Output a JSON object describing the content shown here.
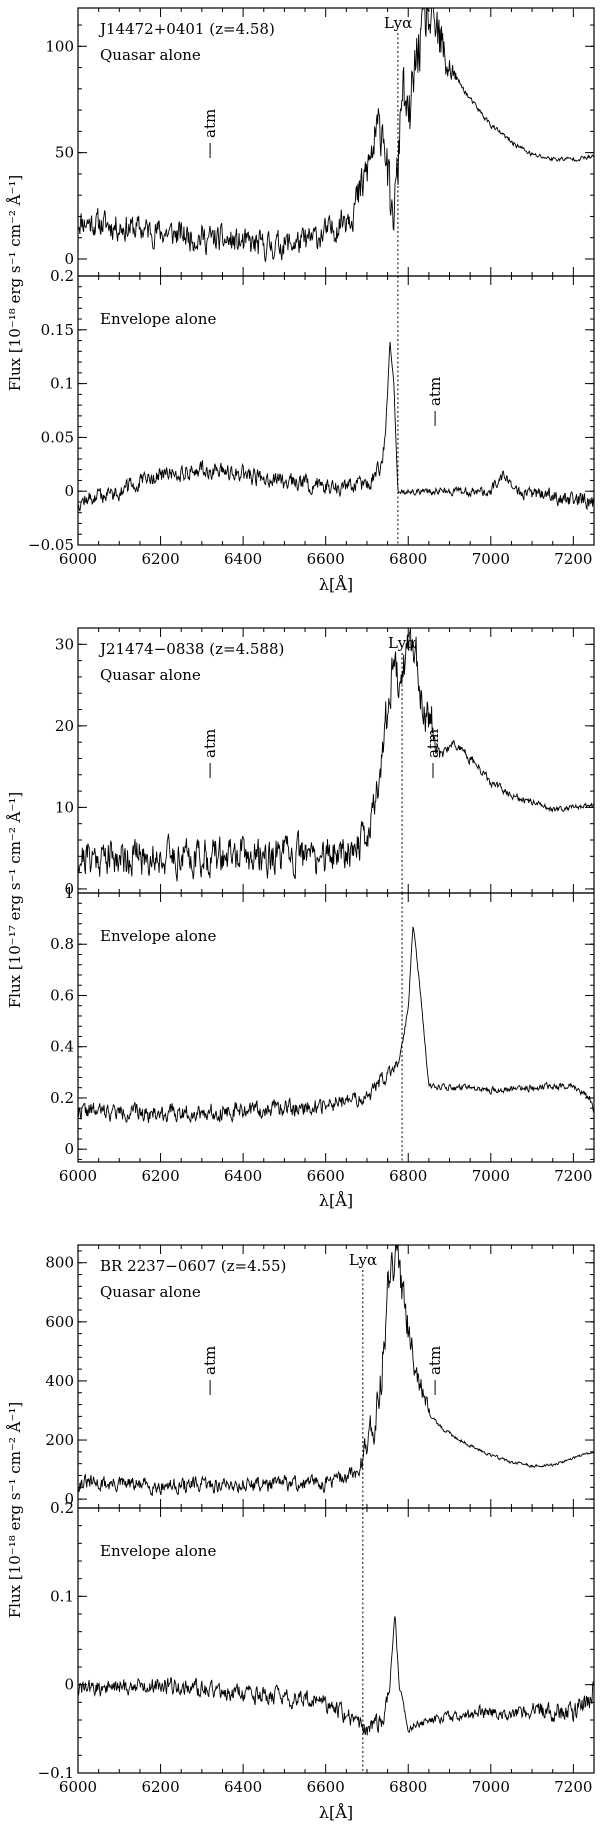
{
  "figure": {
    "xlabel": "λ[Å]",
    "colors": {
      "ink": "#000000",
      "background": "#ffffff"
    }
  },
  "chart_data": [
    {
      "type": "line",
      "xlim": [
        6000,
        7250
      ],
      "x_ticks": [
        6000,
        6200,
        6400,
        6600,
        6800,
        7000,
        7200
      ],
      "x_tick_labels": [
        "6000",
        "6200",
        "6400",
        "6600",
        "6800",
        "7000",
        "7200"
      ],
      "xlabel": "λ[Å]",
      "ylabel": "Flux [10⁻¹⁸ erg s⁻¹ cm⁻² Å⁻¹]",
      "lya_wavelength": 6775,
      "lya_label": "Lyα",
      "panels": [
        {
          "name": "quasar",
          "object_label": "J14472+0401 (z=4.58)",
          "panel_label": "Quasar alone",
          "ylim": [
            -8,
            118
          ],
          "y_ticks": [
            0,
            50,
            100
          ],
          "y_tick_labels": [
            "0",
            "50",
            "100"
          ],
          "atm": [
            {
              "x": 6320,
              "label": "atm"
            }
          ],
          "spectrum": {
            "base": [
              [
                6000,
                18
              ],
              [
                6150,
                14
              ],
              [
                6300,
                10
              ],
              [
                6450,
                6
              ],
              [
                6550,
                8
              ],
              [
                6620,
                14
              ],
              [
                6680,
                28
              ],
              [
                6720,
                55
              ],
              [
                6740,
                65
              ],
              [
                6760,
                15
              ],
              [
                6775,
                40
              ],
              [
                6785,
                85
              ],
              [
                6800,
                60
              ],
              [
                6820,
                95
              ],
              [
                6840,
                112
              ],
              [
                6860,
                112
              ],
              [
                6875,
                100
              ],
              [
                6900,
                90
              ],
              [
                6950,
                75
              ],
              [
                7000,
                63
              ],
              [
                7050,
                55
              ],
              [
                7100,
                49
              ],
              [
                7150,
                47
              ],
              [
                7200,
                47
              ],
              [
                7250,
                48
              ]
            ],
            "noise": [
              [
                6000,
                10
              ],
              [
                6620,
                10
              ],
              [
                6720,
                20
              ],
              [
                6760,
                20
              ],
              [
                6880,
                25
              ],
              [
                6920,
                2
              ],
              [
                7250,
                1.5
              ]
            ],
            "seed": 11
          }
        },
        {
          "name": "envelope",
          "panel_label": "Envelope alone",
          "ylim": [
            -0.05,
            0.2
          ],
          "y_ticks": [
            -0.05,
            0,
            0.05,
            0.1,
            0.15,
            0.2
          ],
          "y_tick_labels": [
            "−0.05",
            "0",
            "0.05",
            "0.1",
            "0.15",
            "0.2"
          ],
          "atm": [
            {
              "x": 6865,
              "label": "atm"
            }
          ],
          "spectrum": {
            "base": [
              [
                6000,
                -0.01
              ],
              [
                6100,
                0.0
              ],
              [
                6200,
                0.015
              ],
              [
                6300,
                0.02
              ],
              [
                6400,
                0.015
              ],
              [
                6500,
                0.01
              ],
              [
                6600,
                0.005
              ],
              [
                6700,
                0.005
              ],
              [
                6730,
                0.02
              ],
              [
                6745,
                0.05
              ],
              [
                6755,
                0.14
              ],
              [
                6765,
                0.1
              ],
              [
                6775,
                0.0
              ],
              [
                6800,
                0.0
              ],
              [
                6900,
                0.0
              ],
              [
                7000,
                0.0
              ],
              [
                7030,
                0.015
              ],
              [
                7060,
                0.0
              ],
              [
                7250,
                -0.01
              ]
            ],
            "noise": [
              [
                6000,
                0.012
              ],
              [
                6740,
                0.012
              ],
              [
                6770,
                0.004
              ],
              [
                7250,
                0.012
              ]
            ],
            "seed": 12
          }
        }
      ]
    },
    {
      "type": "line",
      "xlim": [
        6000,
        7250
      ],
      "x_ticks": [
        6000,
        6200,
        6400,
        6600,
        6800,
        7000,
        7200
      ],
      "x_tick_labels": [
        "6000",
        "6200",
        "6400",
        "6600",
        "6800",
        "7000",
        "7200"
      ],
      "xlabel": "λ[Å]",
      "ylabel": "Flux [10⁻¹⁷ erg s⁻¹ cm⁻² Å⁻¹]",
      "lya_wavelength": 6785,
      "lya_label": "Lyα",
      "panels": [
        {
          "name": "quasar",
          "object_label": "J21474−0838 (z=4.588)",
          "panel_label": "Quasar alone",
          "ylim": [
            -0.5,
            32
          ],
          "y_ticks": [
            0,
            10,
            20,
            30
          ],
          "y_tick_labels": [
            "0",
            "10",
            "20",
            "30"
          ],
          "atm": [
            {
              "x": 6320,
              "label": "atm"
            },
            {
              "x": 6860,
              "label": "atm"
            }
          ],
          "spectrum": {
            "base": [
              [
                6000,
                4
              ],
              [
                6300,
                4
              ],
              [
                6600,
                4
              ],
              [
                6700,
                6
              ],
              [
                6730,
                14
              ],
              [
                6760,
                26
              ],
              [
                6790,
                28
              ],
              [
                6810,
                31
              ],
              [
                6830,
                24
              ],
              [
                6860,
                20
              ],
              [
                6880,
                16
              ],
              [
                6910,
                18
              ],
              [
                6950,
                16
              ],
              [
                7000,
                13
              ],
              [
                7050,
                11.5
              ],
              [
                7100,
                10.5
              ],
              [
                7150,
                9.8
              ],
              [
                7200,
                10
              ],
              [
                7250,
                10.3
              ]
            ],
            "noise": [
              [
                6000,
                3.5
              ],
              [
                6720,
                3.5
              ],
              [
                6760,
                5
              ],
              [
                6850,
                5
              ],
              [
                6880,
                1
              ],
              [
                7250,
                0.4
              ]
            ],
            "seed": 21
          }
        },
        {
          "name": "envelope",
          "panel_label": "Envelope alone",
          "ylim": [
            -0.05,
            1.0
          ],
          "y_ticks": [
            0,
            0.2,
            0.4,
            0.6,
            0.8,
            1
          ],
          "y_tick_labels": [
            "0",
            "0.2",
            "0.4",
            "0.6",
            "0.8",
            "1"
          ],
          "atm": [],
          "spectrum": {
            "base": [
              [
                6000,
                0.15
              ],
              [
                6200,
                0.14
              ],
              [
                6400,
                0.15
              ],
              [
                6600,
                0.17
              ],
              [
                6700,
                0.2
              ],
              [
                6740,
                0.28
              ],
              [
                6780,
                0.35
              ],
              [
                6800,
                0.55
              ],
              [
                6812,
                0.88
              ],
              [
                6830,
                0.6
              ],
              [
                6850,
                0.25
              ],
              [
                6900,
                0.24
              ],
              [
                7000,
                0.23
              ],
              [
                7100,
                0.24
              ],
              [
                7200,
                0.25
              ],
              [
                7240,
                0.2
              ],
              [
                7250,
                0.14
              ]
            ],
            "noise": [
              [
                6000,
                0.05
              ],
              [
                6750,
                0.05
              ],
              [
                6800,
                0.015
              ],
              [
                6860,
                0.015
              ],
              [
                6880,
                0.02
              ],
              [
                7250,
                0.02
              ]
            ],
            "seed": 22
          }
        }
      ]
    },
    {
      "type": "line",
      "xlim": [
        6000,
        7250
      ],
      "x_ticks": [
        6000,
        6200,
        6400,
        6600,
        6800,
        7000,
        7200
      ],
      "x_tick_labels": [
        "6000",
        "6200",
        "6400",
        "6600",
        "6800",
        "7000",
        "7200"
      ],
      "xlabel": "λ[Å]",
      "ylabel": "Flux [10⁻¹⁸ erg s⁻¹ cm⁻² Å⁻¹]",
      "lya_wavelength": 6690,
      "lya_label": "Lyα",
      "panels": [
        {
          "name": "quasar",
          "object_label": "BR 2237−0607 (z=4.55)",
          "panel_label": "Quasar alone",
          "ylim": [
            -30,
            860
          ],
          "y_ticks": [
            0,
            200,
            400,
            600,
            800
          ],
          "y_tick_labels": [
            "0",
            "200",
            "400",
            "600",
            "800"
          ],
          "atm": [
            {
              "x": 6320,
              "label": "atm"
            },
            {
              "x": 6865,
              "label": "atm"
            }
          ],
          "spectrum": {
            "base": [
              [
                6000,
                55
              ],
              [
                6200,
                45
              ],
              [
                6400,
                50
              ],
              [
                6600,
                55
              ],
              [
                6680,
                90
              ],
              [
                6700,
                200
              ],
              [
                6730,
                320
              ],
              [
                6750,
                700
              ],
              [
                6770,
                820
              ],
              [
                6790,
                700
              ],
              [
                6810,
                520
              ],
              [
                6830,
                380
              ],
              [
                6850,
                300
              ],
              [
                6880,
                240
              ],
              [
                6950,
                180
              ],
              [
                7000,
                150
              ],
              [
                7050,
                125
              ],
              [
                7100,
                112
              ],
              [
                7150,
                115
              ],
              [
                7200,
                140
              ],
              [
                7250,
                160
              ]
            ],
            "noise": [
              [
                6000,
                40
              ],
              [
                6680,
                40
              ],
              [
                6720,
                120
              ],
              [
                6800,
                120
              ],
              [
                6860,
                10
              ],
              [
                7250,
                6
              ]
            ],
            "seed": 31
          }
        },
        {
          "name": "envelope",
          "panel_label": "Envelope alone",
          "ylim": [
            -0.1,
            0.2
          ],
          "y_ticks": [
            -0.1,
            0,
            0.1,
            0.2
          ],
          "y_tick_labels": [
            "−0.1",
            "0",
            "0.1",
            "0.2"
          ],
          "atm": [],
          "spectrum": {
            "base": [
              [
                6000,
                -0.005
              ],
              [
                6200,
                0.0
              ],
              [
                6400,
                -0.01
              ],
              [
                6600,
                -0.02
              ],
              [
                6700,
                -0.05
              ],
              [
                6740,
                -0.04
              ],
              [
                6755,
                0.0
              ],
              [
                6768,
                0.08
              ],
              [
                6778,
                0.0
              ],
              [
                6800,
                -0.05
              ],
              [
                6850,
                -0.04
              ],
              [
                7000,
                -0.03
              ],
              [
                7200,
                -0.03
              ],
              [
                7240,
                -0.02
              ],
              [
                7250,
                0.0
              ]
            ],
            "noise": [
              [
                6000,
                0.015
              ],
              [
                6740,
                0.015
              ],
              [
                6780,
                0.006
              ],
              [
                7250,
                0.02
              ]
            ],
            "seed": 32
          }
        }
      ]
    }
  ]
}
